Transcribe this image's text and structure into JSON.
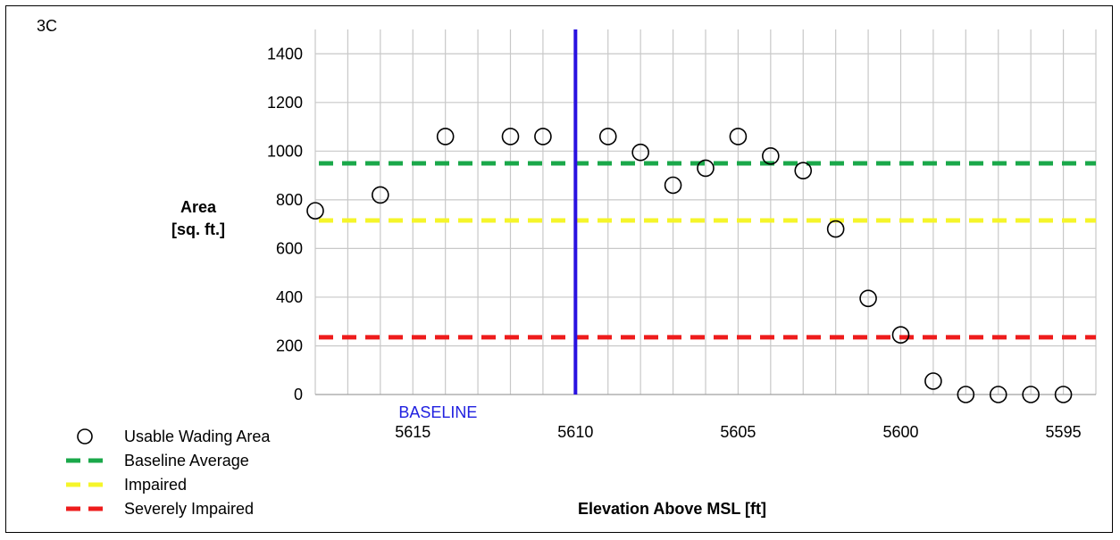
{
  "chart_data": {
    "type": "scatter",
    "panel_label": "3C",
    "ylabel_line1": "Area",
    "ylabel_line2": "[sq. ft.]",
    "xlabel": "Elevation Above MSL [ft]",
    "x_reversed": true,
    "xlim": [
      5618,
      5594
    ],
    "ylim": [
      0,
      1500
    ],
    "x_ticks": [
      5615,
      5610,
      5605,
      5600,
      5595
    ],
    "y_ticks": [
      0,
      200,
      400,
      600,
      800,
      1000,
      1200,
      1400
    ],
    "grid": true,
    "legend_position": "bottom-left",
    "series": [
      {
        "name": "Usable Wading Area",
        "marker": "open-circle",
        "color": "#000000",
        "x": [
          5618,
          5616,
          5614,
          5612,
          5611,
          5609,
          5608,
          5607,
          5606,
          5605,
          5604,
          5603,
          5602,
          5601,
          5600,
          5599,
          5598,
          5597,
          5596,
          5595
        ],
        "y": [
          755,
          820,
          1060,
          1060,
          1060,
          1060,
          995,
          860,
          930,
          1060,
          980,
          920,
          680,
          395,
          245,
          55,
          0,
          0,
          0,
          0
        ]
      }
    ],
    "reference_lines": [
      {
        "name": "Baseline Average",
        "y": 950,
        "color": "#1aa84a",
        "style": "dashed"
      },
      {
        "name": "Impaired",
        "y": 715,
        "color": "#f5f52a",
        "style": "dashed"
      },
      {
        "name": "Severely Impaired",
        "y": 235,
        "color": "#ee1c1c",
        "style": "dashed"
      }
    ],
    "vertical_line": {
      "label": "BASELINE",
      "x": 5610,
      "color": "#2a12e0"
    }
  }
}
